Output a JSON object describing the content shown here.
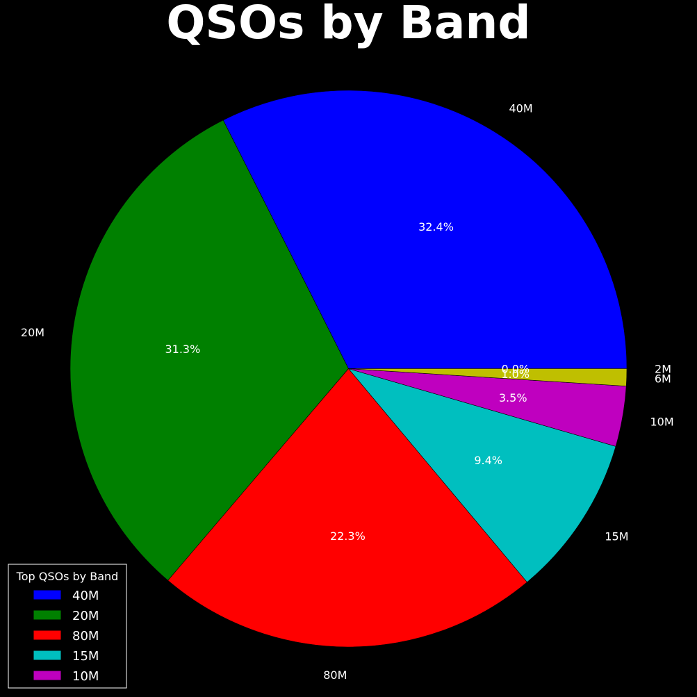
{
  "chart_data": {
    "type": "pie",
    "title": "QSOs by Band",
    "start_angle_deg": 0,
    "direction": "counterclockwise",
    "slices": [
      {
        "label": "40M",
        "value": 32.4,
        "pct_label": "32.4%",
        "color": "#0000ff"
      },
      {
        "label": "20M",
        "value": 31.3,
        "pct_label": "31.3%",
        "color": "#008000"
      },
      {
        "label": "80M",
        "value": 22.3,
        "pct_label": "22.3%",
        "color": "#ff0000"
      },
      {
        "label": "15M",
        "value": 9.4,
        "pct_label": "9.4%",
        "color": "#00bfbf"
      },
      {
        "label": "10M",
        "value": 3.5,
        "pct_label": "3.5%",
        "color": "#bf00bf"
      },
      {
        "label": "6M",
        "value": 1.0,
        "pct_label": "1.0%",
        "color": "#bfbf00"
      },
      {
        "label": "2M",
        "value": 0.0,
        "pct_label": "0.0%",
        "color": "#000000"
      }
    ],
    "legend": {
      "title": "Top QSOs by Band",
      "placement": "lower-left",
      "entries": [
        "40M",
        "20M",
        "80M",
        "15M",
        "10M"
      ]
    }
  }
}
